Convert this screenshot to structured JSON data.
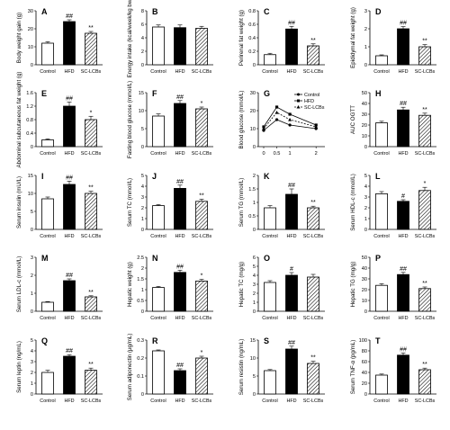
{
  "colors": {
    "control": "#ffffff",
    "hfd": "#000000",
    "sc_lcbs": "hatched",
    "axis": "#000000"
  },
  "chart_data": [
    {
      "panel": "A",
      "type": "bar",
      "ylabel": "Body weight gain (g)",
      "categories": [
        "Control",
        "HFD",
        "SC-LCBs"
      ],
      "values": [
        12,
        24,
        17.5
      ],
      "errors": [
        0.8,
        1.0,
        1.0
      ],
      "ylim": [
        0,
        30
      ],
      "yticks": [
        "0",
        "10",
        "20",
        "30"
      ],
      "labels": [
        "",
        "##",
        "**"
      ]
    },
    {
      "panel": "B",
      "type": "bar",
      "ylabel": "Energy intake (kcal/week/kg bw)",
      "categories": [
        "Control",
        "HFD",
        "SC-LCBs"
      ],
      "values": [
        5.6,
        5.5,
        5.4
      ],
      "errors": [
        0.3,
        0.4,
        0.3
      ],
      "ylim": [
        0,
        8
      ],
      "yticks": [
        "0",
        "2",
        "4",
        "6",
        "8"
      ],
      "labels": [
        "",
        "",
        ""
      ]
    },
    {
      "panel": "C",
      "type": "bar",
      "ylabel": "Perirenal fat weight (g)",
      "categories": [
        "Control",
        "HFD",
        "SC-LCBs"
      ],
      "values": [
        0.15,
        0.53,
        0.28
      ],
      "errors": [
        0.02,
        0.04,
        0.03
      ],
      "ylim": [
        0,
        0.8
      ],
      "yticks": [
        "0",
        "0.2",
        "0.4",
        "0.6",
        "0.8"
      ],
      "labels": [
        "",
        "##",
        "**"
      ]
    },
    {
      "panel": "D",
      "type": "bar",
      "ylabel": "Epididymal fat weight (g)",
      "categories": [
        "Control",
        "HFD",
        "SC-LCBs"
      ],
      "values": [
        0.5,
        2.0,
        1.0
      ],
      "errors": [
        0.05,
        0.12,
        0.12
      ],
      "ylim": [
        0,
        3
      ],
      "yticks": [
        "0",
        "1",
        "2",
        "3"
      ],
      "labels": [
        "",
        "##",
        "**"
      ]
    },
    {
      "panel": "E",
      "type": "bar",
      "ylabel": "Abdominal subcutaneous fat weight (g)",
      "categories": [
        "Control",
        "HFD",
        "SC-LCBs"
      ],
      "values": [
        0.2,
        1.2,
        0.8
      ],
      "errors": [
        0.03,
        0.12,
        0.1
      ],
      "ylim": [
        0,
        1.6
      ],
      "yticks": [
        "0",
        "0.4",
        "0.8",
        "1.2",
        "1.6"
      ],
      "labels": [
        "",
        "##",
        "*"
      ]
    },
    {
      "panel": "F",
      "type": "bar",
      "ylabel": "Fasting blood glucose (mmol/L)",
      "categories": [
        "Control",
        "HFD",
        "SC-LCBs"
      ],
      "values": [
        8.5,
        12,
        10.5
      ],
      "errors": [
        0.6,
        0.8,
        0.5
      ],
      "ylim": [
        0,
        15
      ],
      "yticks": [
        "0",
        "5",
        "10",
        "15"
      ],
      "labels": [
        "",
        "##",
        "*"
      ]
    },
    {
      "panel": "G",
      "type": "line",
      "ylabel": "Blood glucose (mmol/L)",
      "x": [
        0,
        0.5,
        1,
        2
      ],
      "xticks": [
        "0",
        "0.5",
        "1",
        "2"
      ],
      "ylim": [
        0,
        30
      ],
      "yticks": [
        "0",
        "10",
        "20",
        "30"
      ],
      "legend": [
        "Control",
        "HFD",
        "SC-LCBs"
      ],
      "series": [
        {
          "name": "Control",
          "values": [
            9,
            15,
            12,
            10
          ]
        },
        {
          "name": "HFD",
          "values": [
            11,
            22,
            18,
            12
          ]
        },
        {
          "name": "SC-LCBs",
          "values": [
            10,
            19,
            15,
            11
          ]
        }
      ]
    },
    {
      "panel": "H",
      "type": "bar",
      "ylabel": "AUC OGTT",
      "categories": [
        "Control",
        "HFD",
        "SC-LCBs"
      ],
      "values": [
        22,
        34,
        29
      ],
      "errors": [
        1.5,
        2.5,
        2.0
      ],
      "ylim": [
        0,
        50
      ],
      "yticks": [
        "0",
        "10",
        "20",
        "30",
        "40",
        "50"
      ],
      "labels": [
        "",
        "##",
        "**"
      ]
    },
    {
      "panel": "I",
      "type": "bar",
      "ylabel": "Serum insulin (mU/L)",
      "categories": [
        "Control",
        "HFD",
        "SC-LCBs"
      ],
      "values": [
        8.5,
        12.5,
        10
      ],
      "errors": [
        0.5,
        0.9,
        0.6
      ],
      "ylim": [
        0,
        15
      ],
      "yticks": [
        "0",
        "5",
        "10",
        "15"
      ],
      "labels": [
        "",
        "##",
        "**"
      ]
    },
    {
      "panel": "J",
      "type": "bar",
      "ylabel": "Serum TC (mmol/L)",
      "categories": [
        "Control",
        "HFD",
        "SC-LCBs"
      ],
      "values": [
        2.2,
        3.8,
        2.6
      ],
      "errors": [
        0.1,
        0.3,
        0.2
      ],
      "ylim": [
        0,
        5
      ],
      "yticks": [
        "0",
        "1",
        "2",
        "3",
        "4",
        "5"
      ],
      "labels": [
        "",
        "##",
        "**"
      ]
    },
    {
      "panel": "K",
      "type": "bar",
      "ylabel": "Serum TG (mmol/L)",
      "categories": [
        "Control",
        "HFD",
        "SC-LCBs"
      ],
      "values": [
        0.8,
        1.3,
        0.8
      ],
      "errors": [
        0.08,
        0.2,
        0.06
      ],
      "ylim": [
        0,
        2
      ],
      "yticks": [
        "0",
        "0.5",
        "1",
        "1.5",
        "2"
      ],
      "labels": [
        "",
        "##",
        "**"
      ]
    },
    {
      "panel": "L",
      "type": "bar",
      "ylabel": "Serum HDL-c (mmol/L)",
      "categories": [
        "Control",
        "HFD",
        "SC-LCBs"
      ],
      "values": [
        3.3,
        2.6,
        3.6
      ],
      "errors": [
        0.2,
        0.15,
        0.3
      ],
      "ylim": [
        0,
        5
      ],
      "yticks": [
        "0",
        "1",
        "2",
        "3",
        "4",
        "5"
      ],
      "labels": [
        "",
        "#",
        "*"
      ]
    },
    {
      "panel": "M",
      "type": "bar",
      "ylabel": "Serum LDL-c (mmol/L)",
      "categories": [
        "Control",
        "HFD",
        "SC-LCBs"
      ],
      "values": [
        0.5,
        1.7,
        0.8
      ],
      "errors": [
        0.04,
        0.1,
        0.06
      ],
      "ylim": [
        0,
        3
      ],
      "yticks": [
        "0",
        "1",
        "2",
        "3"
      ],
      "labels": [
        "",
        "##",
        "**"
      ]
    },
    {
      "panel": "N",
      "type": "bar",
      "ylabel": "Hepatic weight (g)",
      "categories": [
        "Control",
        "HFD",
        "SC-LCBs"
      ],
      "values": [
        1.1,
        1.8,
        1.4
      ],
      "errors": [
        0.05,
        0.1,
        0.08
      ],
      "ylim": [
        0,
        2.5
      ],
      "yticks": [
        "0",
        "0.5",
        "1",
        "1.5",
        "2",
        "2.5"
      ],
      "labels": [
        "",
        "##",
        "*"
      ]
    },
    {
      "panel": "O",
      "type": "bar",
      "ylabel": "Hepatic TC (mg/g)",
      "categories": [
        "Control",
        "HFD",
        "SC-LCBs"
      ],
      "values": [
        3.2,
        4.0,
        3.8
      ],
      "errors": [
        0.2,
        0.3,
        0.3
      ],
      "ylim": [
        0,
        6
      ],
      "yticks": [
        "0",
        "1",
        "2",
        "3",
        "4",
        "5",
        "6"
      ],
      "labels": [
        "",
        "#",
        ""
      ]
    },
    {
      "panel": "P",
      "type": "bar",
      "ylabel": "Hepatic TG (mg/g)",
      "categories": [
        "Control",
        "HFD",
        "SC-LCBs"
      ],
      "values": [
        24,
        34,
        21
      ],
      "errors": [
        1.5,
        2.0,
        1.5
      ],
      "ylim": [
        0,
        50
      ],
      "yticks": [
        "0",
        "10",
        "20",
        "30",
        "40",
        "50"
      ],
      "labels": [
        "",
        "##",
        "**"
      ]
    },
    {
      "panel": "Q",
      "type": "bar",
      "ylabel": "Serum leptin (ng/mL)",
      "categories": [
        "Control",
        "HFD",
        "SC-LCBs"
      ],
      "values": [
        2.0,
        3.5,
        2.2
      ],
      "errors": [
        0.2,
        0.15,
        0.2
      ],
      "ylim": [
        0,
        5
      ],
      "yticks": [
        "0",
        "1",
        "2",
        "3",
        "4",
        "5"
      ],
      "labels": [
        "",
        "##",
        "**"
      ]
    },
    {
      "panel": "R",
      "type": "bar",
      "ylabel": "Serum adiponectin (μg/mL)",
      "categories": [
        "Control",
        "HFD",
        "SC-LCBs"
      ],
      "values": [
        0.24,
        0.13,
        0.2
      ],
      "errors": [
        0.005,
        0.01,
        0.01
      ],
      "ylim": [
        0,
        0.3
      ],
      "yticks": [
        "0",
        "0.1",
        "0.2",
        "0.3"
      ],
      "labels": [
        "",
        "##",
        "*"
      ]
    },
    {
      "panel": "S",
      "type": "bar",
      "ylabel": "Serum resistin (ng/mL)",
      "categories": [
        "Control",
        "HFD",
        "SC-LCBs"
      ],
      "values": [
        6.5,
        12.5,
        8.5
      ],
      "errors": [
        0.3,
        0.8,
        0.6
      ],
      "ylim": [
        0,
        15
      ],
      "yticks": [
        "0",
        "5",
        "10",
        "15"
      ],
      "labels": [
        "",
        "##",
        "**"
      ]
    },
    {
      "panel": "T",
      "type": "bar",
      "ylabel": "Serum TNF-α (pg/mL)",
      "categories": [
        "Control",
        "HFD",
        "SC-LCBs"
      ],
      "values": [
        35,
        72,
        45
      ],
      "errors": [
        2,
        4,
        3
      ],
      "ylim": [
        0,
        100
      ],
      "yticks": [
        "0",
        "20",
        "40",
        "60",
        "80",
        "100"
      ],
      "labels": [
        "",
        "##",
        "**"
      ]
    }
  ]
}
